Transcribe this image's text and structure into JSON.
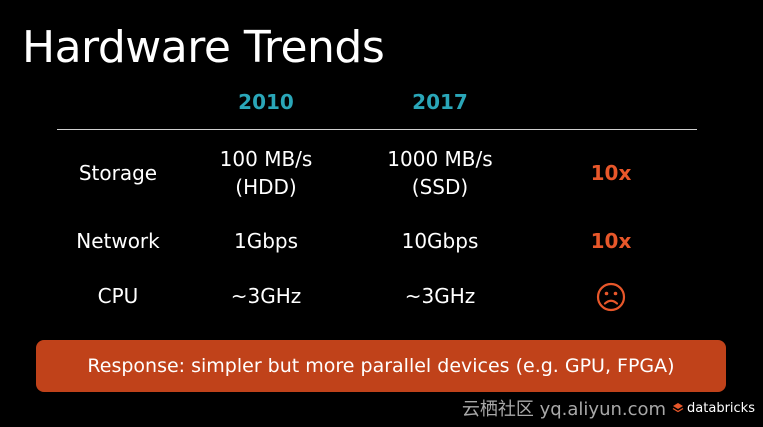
{
  "slide": {
    "title": "Hardware Trends",
    "columns": {
      "year_2010": "2010",
      "year_2017": "2017"
    },
    "rows": [
      {
        "label": "Storage",
        "v2010_line1": "100 MB/s",
        "v2010_line2": "(HDD)",
        "v2017_line1": "1000 MB/s",
        "v2017_line2": "(SSD)",
        "change": "10x"
      },
      {
        "label": "Network",
        "v2010": "1Gbps",
        "v2017": "10Gbps",
        "change": "10x"
      },
      {
        "label": "CPU",
        "v2010": "~3GHz",
        "v2017": "~3GHz",
        "change_icon": "sad-face-icon"
      }
    ],
    "banner": "Response: simpler but more parallel devices (e.g. GPU, FPGA)"
  },
  "watermark": {
    "site": "云栖社区 yq.aliyun.com",
    "brand": "databricks"
  },
  "colors": {
    "background": "#000000",
    "year_header": "#2aa6b8",
    "change_accent": "#e8572a",
    "banner_bg": "#c0421a",
    "text": "#ffffff"
  }
}
